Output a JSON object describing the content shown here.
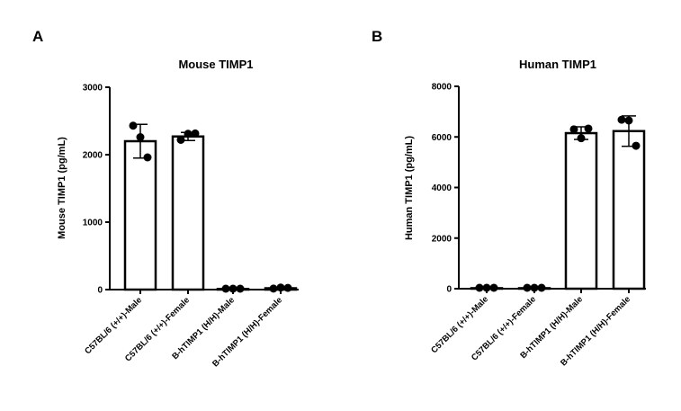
{
  "chart_data": [
    {
      "panel_label": "A",
      "type": "bar",
      "title": "Mouse TIMP1",
      "xlabel": "",
      "ylabel": "Mouse TIMP1 (pg/mL)",
      "ylim": [
        0,
        3000
      ],
      "yticks": [
        0,
        1000,
        2000,
        3000
      ],
      "grid": false,
      "categories": [
        "C57BL/6 (+/+)-Male",
        "C57BL/6 (+/+)-Female",
        "B-hTIMP1 (H/H)-Male",
        "B-hTIMP1 (H/H)-Female"
      ],
      "values": [
        2200,
        2270,
        10,
        20
      ],
      "error": [
        250,
        60,
        5,
        10
      ],
      "points": [
        [
          2430,
          2260,
          1960
        ],
        [
          2220,
          2310,
          2315
        ],
        [
          10,
          8,
          12
        ],
        [
          15,
          30,
          25
        ]
      ]
    },
    {
      "panel_label": "B",
      "type": "bar",
      "title": "Human TIMP1",
      "xlabel": "",
      "ylabel": "Human TIMP1 (pg/mL)",
      "ylim": [
        0,
        8000
      ],
      "yticks": [
        0,
        2000,
        4000,
        6000,
        8000
      ],
      "grid": false,
      "categories": [
        "C57BL/6 (+/+)-Male",
        "C57BL/6 (+/+)-Female",
        "B-hTIMP1 (H/H)-Male",
        "B-hTIMP1 (H/H)-Female"
      ],
      "values": [
        20,
        20,
        6150,
        6230
      ],
      "error": [
        10,
        10,
        250,
        600
      ],
      "points": [
        [
          20,
          25,
          15
        ],
        [
          20,
          18,
          22
        ],
        [
          6300,
          5950,
          6330
        ],
        [
          6680,
          6650,
          5650
        ]
      ]
    }
  ]
}
